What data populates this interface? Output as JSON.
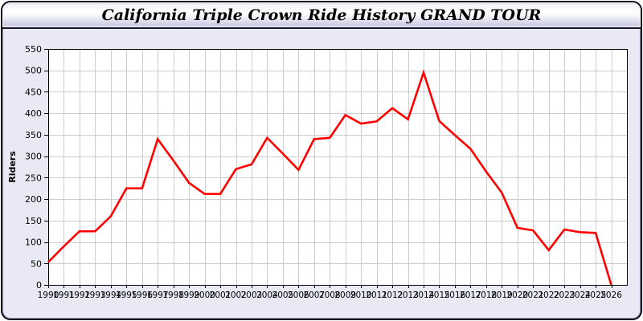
{
  "window": {
    "title": "California Triple Crown Ride History GRAND TOUR"
  },
  "chart_data": {
    "type": "line",
    "title": "California Triple Crown Ride History GRAND TOUR",
    "xlabel": "",
    "ylabel": "Riders",
    "legend_position": "none",
    "grid": true,
    "x": [
      1990,
      1991,
      1992,
      1993,
      1994,
      1995,
      1996,
      1997,
      1998,
      1999,
      2000,
      2001,
      2002,
      2003,
      2004,
      2005,
      2006,
      2007,
      2008,
      2009,
      2010,
      2011,
      2012,
      2013,
      2014,
      2015,
      2016,
      2017,
      2018,
      2019,
      2020,
      2021,
      2022,
      2023,
      2024,
      2025,
      2026
    ],
    "series": [
      {
        "name": "Riders",
        "values": [
          53,
          90,
          125,
          125,
          160,
          225,
          225,
          340,
          290,
          238,
          212,
          212,
          270,
          281,
          343,
          306,
          268,
          340,
          343,
          396,
          376,
          381,
          412,
          386,
          495,
          382,
          349,
          317,
          264,
          215,
          133,
          127,
          81,
          129,
          123,
          121,
          0
        ]
      }
    ],
    "ylim": [
      0,
      550
    ],
    "ytick_step": 50,
    "xaxis_extends_to": 2027
  },
  "colors": {
    "line": "#ff0000",
    "grid": "#cccccc",
    "plot_background": "#ffffff",
    "panel_background": "#e9e9f6",
    "axis": "#000000",
    "titlebar_bottom": "#c3c3e0",
    "window_border": "#0a0a18",
    "text": "#000000"
  }
}
